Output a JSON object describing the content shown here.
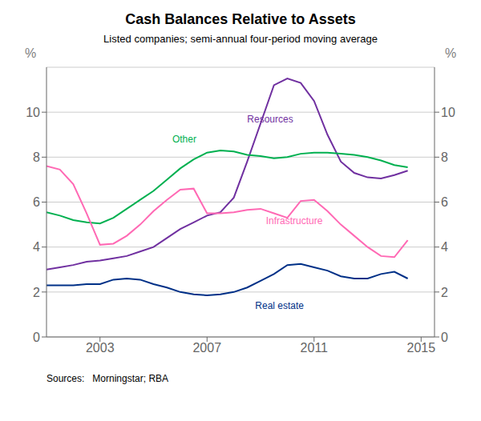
{
  "chart_data": {
    "type": "line",
    "title": "Cash Balances Relative to Assets",
    "subtitle": "Listed companies; semi-annual four-period moving average",
    "ylabel": "%",
    "y2label": "%",
    "x": [
      2001.0,
      2001.5,
      2002.0,
      2002.5,
      2003.0,
      2003.5,
      2004.0,
      2004.5,
      2005.0,
      2005.5,
      2006.0,
      2006.5,
      2007.0,
      2007.5,
      2008.0,
      2008.5,
      2009.0,
      2009.5,
      2010.0,
      2010.5,
      2011.0,
      2011.5,
      2012.0,
      2012.5,
      2013.0,
      2013.5,
      2014.0,
      2014.5
    ],
    "series": [
      {
        "name": "Resources",
        "color": "#7030A0",
        "values": [
          3.0,
          3.1,
          3.2,
          3.35,
          3.4,
          3.5,
          3.6,
          3.8,
          4.0,
          4.4,
          4.8,
          5.1,
          5.4,
          5.55,
          6.2,
          7.8,
          9.5,
          11.2,
          11.5,
          11.3,
          10.5,
          9.0,
          7.8,
          7.3,
          7.1,
          7.05,
          7.2,
          7.4
        ]
      },
      {
        "name": "Other",
        "color": "#00B050",
        "values": [
          5.55,
          5.4,
          5.2,
          5.1,
          5.05,
          5.3,
          5.7,
          6.1,
          6.5,
          7.0,
          7.5,
          7.9,
          8.2,
          8.3,
          8.25,
          8.1,
          8.05,
          7.95,
          8.0,
          8.15,
          8.2,
          8.2,
          8.15,
          8.1,
          8.0,
          7.85,
          7.65,
          7.55
        ]
      },
      {
        "name": "Infrastructure",
        "color": "#FF69B4",
        "values": [
          7.6,
          7.45,
          6.8,
          5.5,
          4.1,
          4.15,
          4.5,
          5.0,
          5.6,
          6.1,
          6.55,
          6.6,
          5.5,
          5.5,
          5.55,
          5.65,
          5.7,
          5.5,
          5.3,
          6.05,
          6.1,
          5.6,
          5.0,
          4.5,
          4.0,
          3.6,
          3.55,
          4.3
        ]
      },
      {
        "name": "Real estate",
        "color": "#003087",
        "values": [
          2.3,
          2.3,
          2.3,
          2.35,
          2.35,
          2.55,
          2.6,
          2.55,
          2.35,
          2.2,
          2.0,
          1.9,
          1.85,
          1.9,
          2.0,
          2.2,
          2.5,
          2.8,
          3.2,
          3.25,
          3.1,
          2.95,
          2.7,
          2.6,
          2.6,
          2.8,
          2.9,
          2.6
        ]
      }
    ],
    "annotations": [
      {
        "text": "Resources",
        "x": 2008.5,
        "y": 9.45
      },
      {
        "text": "Other",
        "x": 2005.7,
        "y": 8.55
      },
      {
        "text": "Infrastructure",
        "x": 2009.2,
        "y": 4.9
      },
      {
        "text": "Real estate",
        "x": 2008.8,
        "y": 1.15
      },
      {
        "text": "Sources:   Morningstar; RBA"
      }
    ],
    "xlim": [
      2001.0,
      2015.5
    ],
    "xticks": [
      2003,
      2007,
      2011,
      2015
    ],
    "ylim": [
      0,
      12
    ],
    "yticks": [
      0,
      2,
      4,
      6,
      8,
      10
    ],
    "y2lim": [
      0,
      12
    ],
    "y2ticks": [
      0,
      2,
      4,
      6,
      8,
      10
    ],
    "grid": true
  }
}
